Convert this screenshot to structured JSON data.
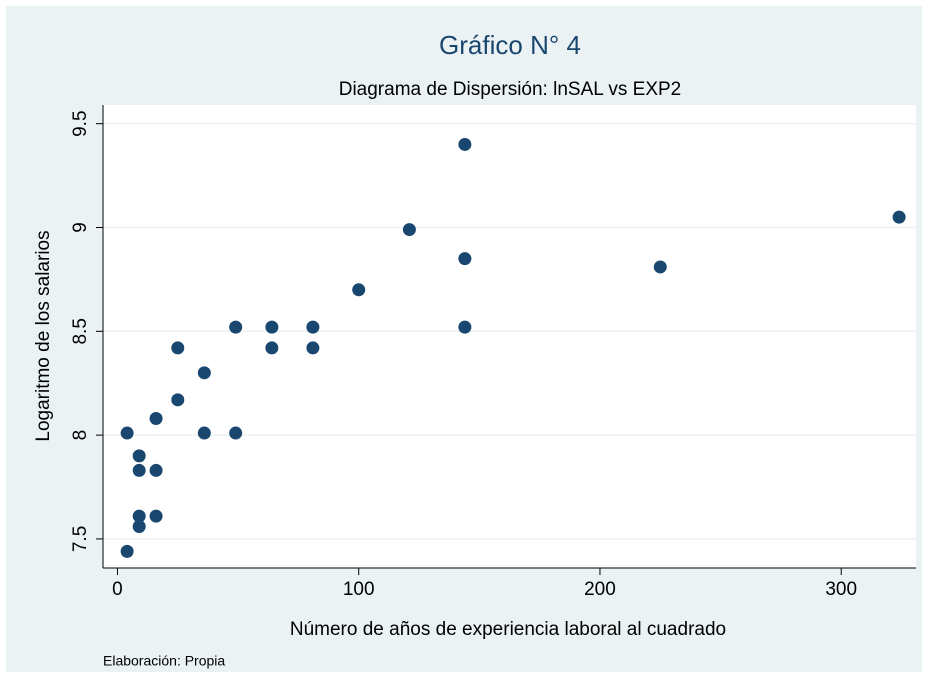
{
  "chart_data": {
    "type": "scatter",
    "title": "Gráfico N° 4",
    "subtitle": "Diagrama de Dispersión: lnSAL vs EXP2",
    "x_label": "Número de años de experiencia laboral al cuadrado",
    "y_label": "Logaritmo de los salarios",
    "note": "Elaboración: Propia",
    "color": "#1a476f",
    "grid": true,
    "x": [
      4,
      4,
      9,
      9,
      9,
      9,
      16,
      16,
      16,
      25,
      25,
      36,
      36,
      49,
      49,
      64,
      64,
      81,
      81,
      100,
      121,
      144,
      144,
      144,
      225,
      324
    ],
    "y": [
      8.01,
      7.44,
      7.9,
      7.83,
      7.61,
      7.56,
      8.08,
      7.83,
      7.61,
      8.42,
      8.17,
      8.3,
      8.01,
      8.52,
      8.01,
      8.52,
      8.42,
      8.52,
      8.42,
      8.7,
      8.99,
      9.4,
      8.85,
      8.52,
      8.81,
      9.05
    ],
    "xlim": [
      -6,
      331
    ],
    "ylim": [
      7.36,
      9.59
    ],
    "xticks": [
      0,
      100,
      200,
      300
    ],
    "yticks": [
      7.5,
      8,
      8.5,
      9,
      9.5
    ]
  }
}
